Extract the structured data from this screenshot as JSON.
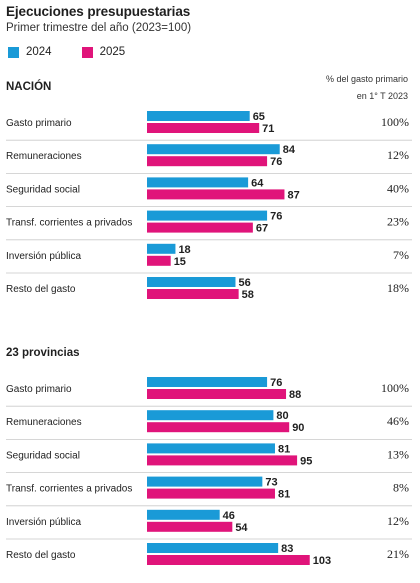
{
  "title": "Ejecuciones presupuestarias",
  "subtitle": "Primer trimestre del año (2023=100)",
  "legend": [
    {
      "label": "2024",
      "color": "#1a9ad7"
    },
    {
      "label": "2025",
      "color": "#e0147a"
    }
  ],
  "note": [
    "% del gasto primario",
    "en 1° T 2023"
  ],
  "chart_data": [
    {
      "type": "bar",
      "title": "NACIÓN",
      "categories": [
        "Gasto primario",
        "Remuneraciones",
        "Seguridad social",
        "Transf. corrientes a privados",
        "Inversión pública",
        "Resto del gasto"
      ],
      "series": [
        {
          "name": "2024",
          "values": [
            65,
            84,
            64,
            76,
            18,
            56
          ]
        },
        {
          "name": "2025",
          "values": [
            71,
            76,
            87,
            67,
            15,
            58
          ]
        }
      ],
      "share": [
        "100%",
        "12%",
        "40%",
        "23%",
        "7%",
        "18%"
      ]
    },
    {
      "type": "bar",
      "title": "23 provincias",
      "categories": [
        "Gasto primario",
        "Remuneraciones",
        "Seguridad social",
        "Transf. corrientes a privados",
        "Inversión pública",
        "Resto del gasto"
      ],
      "series": [
        {
          "name": "2024",
          "values": [
            76,
            80,
            81,
            73,
            46,
            83
          ]
        },
        {
          "name": "2025",
          "values": [
            88,
            90,
            95,
            81,
            54,
            103
          ]
        }
      ],
      "share": [
        "100%",
        "46%",
        "13%",
        "8%",
        "12%",
        "21%"
      ]
    }
  ]
}
